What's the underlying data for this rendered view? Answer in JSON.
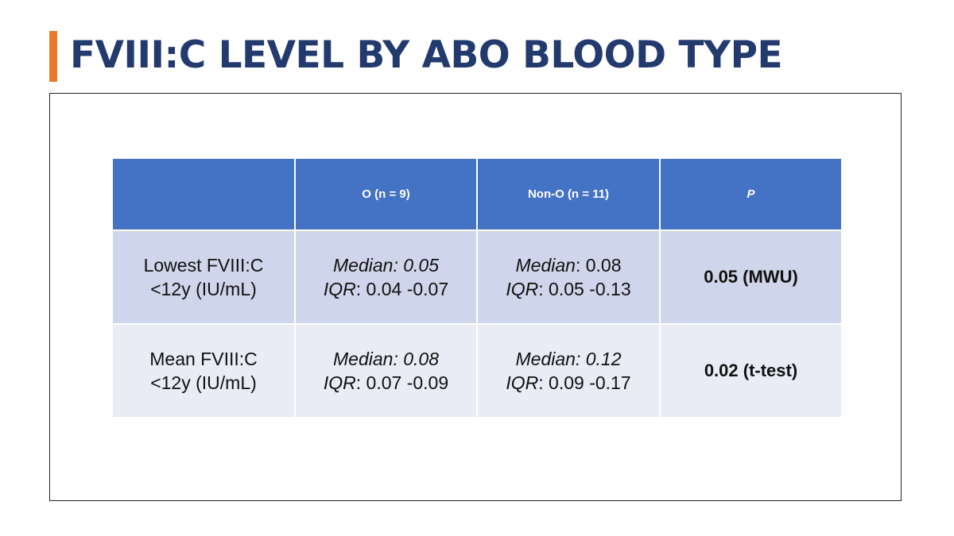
{
  "slide": {
    "title": "FVIII:C LEVEL BY ABO BLOOD TYPE",
    "accent_color": "#E8792B",
    "title_color": "#233A6E"
  },
  "table": {
    "header_color": "#4472C4",
    "row_colors": [
      "#CFD5EA",
      "#E9EBF5"
    ],
    "headers": [
      "",
      "O (n = 9)",
      "Non-O (n = 11)",
      "P"
    ],
    "rows": [
      {
        "label_line1": "Lowest FVIII:C",
        "label_line2": "<12y (IU/mL)",
        "o": {
          "median_label": "Median",
          "median_value": ": 0.05",
          "iqr_label": "IQR",
          "iqr_value": ": 0.04 -0.07"
        },
        "non_o": {
          "median_label": "Median",
          "median_value": ": 0.08",
          "iqr_label": "IQR",
          "iqr_value": ": 0.05 -0.13"
        },
        "p": "0.05 (MWU)"
      },
      {
        "label_line1": "Mean FVIII:C",
        "label_line2": "<12y (IU/mL)",
        "o": {
          "median_label": "Median",
          "median_value": ": 0.08",
          "iqr_label": "IQR",
          "iqr_value": ": 0.07 -0.09"
        },
        "non_o": {
          "median_label": "Median",
          "median_value": ": 0.12",
          "iqr_label": "IQR",
          "iqr_value": ": 0.09 -0.17"
        },
        "p": "0.02 (t-test)"
      }
    ]
  }
}
